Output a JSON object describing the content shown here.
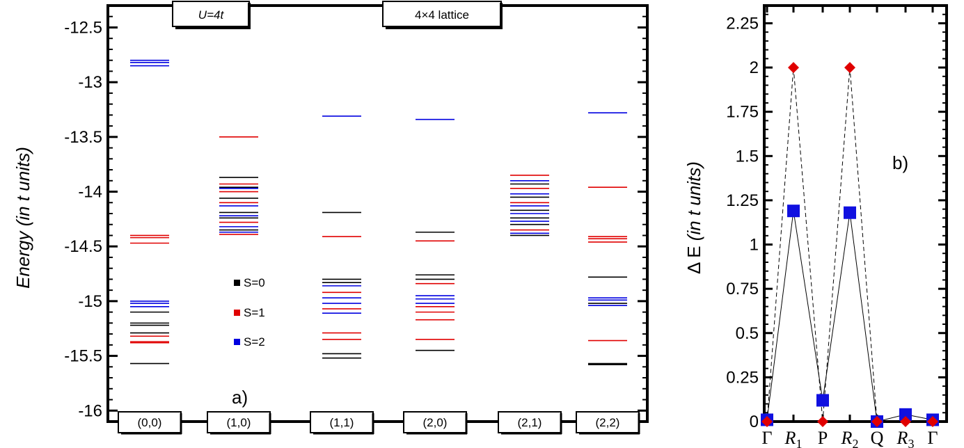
{
  "chart_data": [
    {
      "type": "level-diagram",
      "ylabel_main": "Energy",
      "ylabel_italic": "(in t units)",
      "ylim": [
        -16.1,
        -12.3
      ],
      "yticks": [
        "-12.5",
        "-13",
        "-13.5",
        "-14",
        "-14.5",
        "-15",
        "-15.5",
        "-16"
      ],
      "ytick_values": [
        -12.5,
        -13,
        -13.5,
        -14,
        -14.5,
        -15,
        -15.5,
        -16
      ],
      "annotation_left": "U=4t",
      "annotation_right": "4×4 lattice",
      "panel_label": "a)",
      "legend": [
        {
          "label": "S=0",
          "color": "#000000"
        },
        {
          "label": "S=1",
          "color": "#e00000"
        },
        {
          "label": "S=2",
          "color": "#0000e0"
        }
      ],
      "columns": [
        {
          "label": "(0,0)",
          "levels": [
            {
              "e": -12.8,
              "s": 2
            },
            {
              "e": -12.82,
              "s": 2
            },
            {
              "e": -12.85,
              "s": 2
            },
            {
              "e": -14.4,
              "s": 1
            },
            {
              "e": -14.42,
              "s": 1
            },
            {
              "e": -14.47,
              "s": 1
            },
            {
              "e": -15.0,
              "s": 2
            },
            {
              "e": -15.02,
              "s": 2
            },
            {
              "e": -15.05,
              "s": 2
            },
            {
              "e": -15.1,
              "s": 0
            },
            {
              "e": -15.2,
              "s": 0
            },
            {
              "e": -15.22,
              "s": 0
            },
            {
              "e": -15.29,
              "s": 0
            },
            {
              "e": -15.32,
              "s": 1
            },
            {
              "e": -15.37,
              "s": 1
            },
            {
              "e": -15.38,
              "s": 1
            },
            {
              "e": -15.57,
              "s": 0
            }
          ]
        },
        {
          "label": "(1,0)",
          "levels": [
            {
              "e": -13.5,
              "s": 1
            },
            {
              "e": -13.87,
              "s": 0
            },
            {
              "e": -13.93,
              "s": 1
            },
            {
              "e": -13.96,
              "s": 0
            },
            {
              "e": -13.97,
              "s": 2
            },
            {
              "e": -14.0,
              "s": 1
            },
            {
              "e": -14.06,
              "s": 0
            },
            {
              "e": -14.1,
              "s": 1
            },
            {
              "e": -14.13,
              "s": 2
            },
            {
              "e": -14.19,
              "s": 0
            },
            {
              "e": -14.22,
              "s": 2
            },
            {
              "e": -14.24,
              "s": 0
            },
            {
              "e": -14.28,
              "s": 1
            },
            {
              "e": -14.32,
              "s": 2
            },
            {
              "e": -14.35,
              "s": 0
            },
            {
              "e": -14.37,
              "s": 2
            },
            {
              "e": -14.39,
              "s": 1
            }
          ]
        },
        {
          "label": "(1,1)",
          "levels": [
            {
              "e": -13.31,
              "s": 2
            },
            {
              "e": -14.19,
              "s": 0
            },
            {
              "e": -14.41,
              "s": 1
            },
            {
              "e": -14.8,
              "s": 0
            },
            {
              "e": -14.83,
              "s": 0
            },
            {
              "e": -14.86,
              "s": 2
            },
            {
              "e": -14.92,
              "s": 1
            },
            {
              "e": -14.97,
              "s": 2
            },
            {
              "e": -15.02,
              "s": 2
            },
            {
              "e": -15.07,
              "s": 1
            },
            {
              "e": -15.11,
              "s": 2
            },
            {
              "e": -15.29,
              "s": 1
            },
            {
              "e": -15.35,
              "s": 1
            },
            {
              "e": -15.48,
              "s": 0
            },
            {
              "e": -15.52,
              "s": 0
            }
          ]
        },
        {
          "label": "(2,0)",
          "levels": [
            {
              "e": -13.34,
              "s": 2
            },
            {
              "e": -14.37,
              "s": 0
            },
            {
              "e": -14.45,
              "s": 1
            },
            {
              "e": -14.76,
              "s": 0
            },
            {
              "e": -14.8,
              "s": 0
            },
            {
              "e": -14.84,
              "s": 1
            },
            {
              "e": -14.95,
              "s": 2
            },
            {
              "e": -14.98,
              "s": 2
            },
            {
              "e": -15.02,
              "s": 2
            },
            {
              "e": -15.05,
              "s": 1
            },
            {
              "e": -15.1,
              "s": 1
            },
            {
              "e": -15.17,
              "s": 1
            },
            {
              "e": -15.35,
              "s": 1
            },
            {
              "e": -15.45,
              "s": 0
            }
          ]
        },
        {
          "label": "(2,1)",
          "levels": [
            {
              "e": -13.85,
              "s": 1
            },
            {
              "e": -13.9,
              "s": 2
            },
            {
              "e": -13.93,
              "s": 0
            },
            {
              "e": -13.97,
              "s": 1
            },
            {
              "e": -14.02,
              "s": 2
            },
            {
              "e": -14.05,
              "s": 0
            },
            {
              "e": -14.1,
              "s": 1
            },
            {
              "e": -14.13,
              "s": 2
            },
            {
              "e": -14.17,
              "s": 0
            },
            {
              "e": -14.2,
              "s": 2
            },
            {
              "e": -14.24,
              "s": 0
            },
            {
              "e": -14.27,
              "s": 2
            },
            {
              "e": -14.3,
              "s": 0
            },
            {
              "e": -14.35,
              "s": 1
            },
            {
              "e": -14.38,
              "s": 2
            },
            {
              "e": -14.4,
              "s": 0
            }
          ]
        },
        {
          "label": "(2,2)",
          "levels": [
            {
              "e": -13.28,
              "s": 2
            },
            {
              "e": -13.96,
              "s": 1
            },
            {
              "e": -14.41,
              "s": 1
            },
            {
              "e": -14.43,
              "s": 1
            },
            {
              "e": -14.46,
              "s": 1
            },
            {
              "e": -14.78,
              "s": 0
            },
            {
              "e": -14.97,
              "s": 2
            },
            {
              "e": -14.99,
              "s": 2
            },
            {
              "e": -15.02,
              "s": 0
            },
            {
              "e": -15.04,
              "s": 2
            },
            {
              "e": -15.36,
              "s": 1
            },
            {
              "e": -15.57,
              "s": 0
            },
            {
              "e": -15.58,
              "s": 0
            }
          ]
        }
      ]
    },
    {
      "type": "line",
      "ylabel_main": "Δ E",
      "ylabel_italic": "(in t units)",
      "ylim": [
        0,
        2.35
      ],
      "yticks": [
        "0",
        "0.25",
        "0.5",
        "0.75",
        "1",
        "1.25",
        "1.5",
        "1.75",
        "2",
        "2.25"
      ],
      "ytick_values": [
        0,
        0.25,
        0.5,
        0.75,
        1,
        1.25,
        1.5,
        1.75,
        2,
        2.25
      ],
      "categories": [
        "Γ",
        "R1",
        "P",
        "R2",
        "Q",
        "R3",
        "Γ"
      ],
      "category_labels": [
        {
          "main": "Γ",
          "sub": "",
          "italic": false
        },
        {
          "main": "R",
          "sub": "1",
          "italic": true
        },
        {
          "main": "P",
          "sub": "",
          "italic": false
        },
        {
          "main": "R",
          "sub": "2",
          "italic": true
        },
        {
          "main": "Q",
          "sub": "",
          "italic": false
        },
        {
          "main": "R",
          "sub": "3",
          "italic": true
        },
        {
          "main": "Γ",
          "sub": "",
          "italic": false
        }
      ],
      "panel_label": "b)",
      "series": [
        {
          "marker": "square",
          "color": "#1010e0",
          "line": "solid",
          "values": [
            0.01,
            1.19,
            0.12,
            1.18,
            0.0,
            0.04,
            0.01
          ]
        },
        {
          "marker": "diamond",
          "color": "#e00000",
          "line": "dashed",
          "values": [
            0.0,
            2.0,
            0.0,
            2.0,
            0.0,
            0.0,
            0.0
          ]
        }
      ]
    }
  ]
}
